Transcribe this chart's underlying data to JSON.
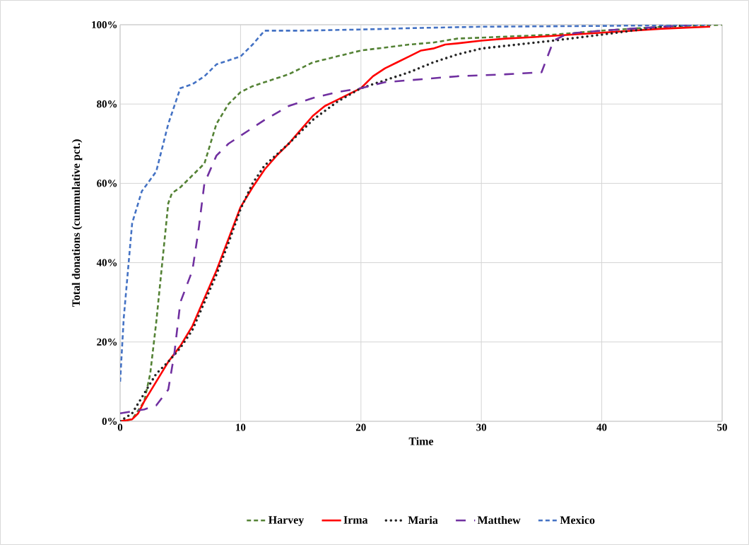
{
  "chart_data": {
    "type": "line",
    "xlabel": "Time",
    "ylabel": "Total donations (cummulative pct.)",
    "xlim": [
      0,
      50
    ],
    "ylim": [
      0,
      100
    ],
    "xticks": [
      0,
      10,
      20,
      30,
      40,
      50
    ],
    "yticks": [
      {
        "value": 0,
        "label": "0%"
      },
      {
        "value": 20,
        "label": "20%"
      },
      {
        "value": 40,
        "label": "40%"
      },
      {
        "value": 60,
        "label": "60%"
      },
      {
        "value": 80,
        "label": "80%"
      },
      {
        "value": 100,
        "label": "100%"
      }
    ],
    "grid": true,
    "legend": "bottom",
    "marker": "none",
    "series": [
      {
        "name": "Harvey",
        "color": "#548235",
        "line_style": "dashed",
        "x": [
          0,
          1,
          2,
          2.5,
          3,
          3.5,
          4,
          4.3,
          5,
          6,
          7,
          8,
          9,
          10,
          11,
          12,
          14,
          16,
          18,
          20,
          24,
          26,
          28,
          32,
          36,
          40,
          45,
          50
        ],
        "values": [
          0,
          0.5,
          5,
          12,
          25,
          40,
          55,
          57.5,
          59,
          62,
          65,
          75,
          80,
          83,
          84.5,
          85.5,
          87.5,
          90.5,
          92,
          93.5,
          95,
          95.5,
          96.5,
          97,
          97.5,
          98.5,
          99.5,
          100
        ]
      },
      {
        "name": "Irma",
        "color": "#ff0000",
        "line_style": "solid",
        "x": [
          0,
          1,
          1.5,
          2,
          3,
          4,
          5,
          6,
          7,
          8,
          9,
          10,
          11,
          12,
          13,
          14,
          15,
          16,
          17,
          18,
          19,
          20,
          21,
          22,
          23,
          24,
          25,
          26,
          27,
          28,
          30,
          32,
          35,
          40,
          45,
          49
        ],
        "values": [
          0,
          0.5,
          2,
          5,
          10,
          15,
          19,
          24,
          31,
          38,
          46,
          54,
          59,
          63.5,
          67,
          70,
          73.5,
          77,
          79.5,
          81,
          82.5,
          84,
          87,
          89,
          90.5,
          92,
          93.5,
          94,
          95,
          95.3,
          96,
          96.5,
          97,
          98,
          99,
          99.5
        ]
      },
      {
        "name": "Maria",
        "color": "#262626",
        "line_style": "dotted",
        "x": [
          0,
          1,
          2,
          3,
          4,
          5,
          6,
          7,
          8,
          9,
          10,
          11,
          12,
          14,
          16,
          18,
          20,
          22,
          24,
          26,
          28,
          30,
          33,
          36,
          40,
          45,
          48
        ],
        "values": [
          0,
          2,
          7,
          12,
          15,
          18.5,
          23,
          30,
          37,
          45,
          53.5,
          60,
          64.5,
          70,
          76,
          80.5,
          84,
          86,
          88,
          90.5,
          92.5,
          94,
          95,
          96,
          97.5,
          99.5,
          100
        ]
      },
      {
        "name": "Matthew",
        "color": "#7030a0",
        "line_style": "dashdot",
        "x": [
          0,
          2,
          3,
          4,
          4.5,
          5,
          6,
          6.5,
          7,
          8,
          9,
          10,
          12,
          14,
          16,
          18,
          20,
          22,
          24,
          28,
          32,
          35,
          35.5,
          36,
          37,
          38,
          40,
          45,
          48
        ],
        "values": [
          2,
          3,
          4,
          8,
          17,
          30,
          38,
          48,
          60,
          67,
          70,
          72,
          76,
          79.5,
          81.5,
          83,
          84,
          85.5,
          86,
          87,
          87.5,
          88,
          92,
          96,
          97.5,
          98,
          98.5,
          99.5,
          100
        ]
      },
      {
        "name": "Mexico",
        "color": "#4472c4",
        "line_style": "dashed",
        "x": [
          0,
          0.3,
          1,
          1.8,
          3,
          4,
          5,
          6,
          7,
          8,
          10,
          11,
          12,
          15,
          20,
          25,
          30,
          40,
          49
        ],
        "values": [
          10,
          26,
          50,
          58,
          63,
          75,
          84,
          85,
          87,
          90,
          92,
          95,
          98.5,
          98.5,
          98.8,
          99.2,
          99.5,
          99.7,
          100
        ]
      }
    ]
  }
}
